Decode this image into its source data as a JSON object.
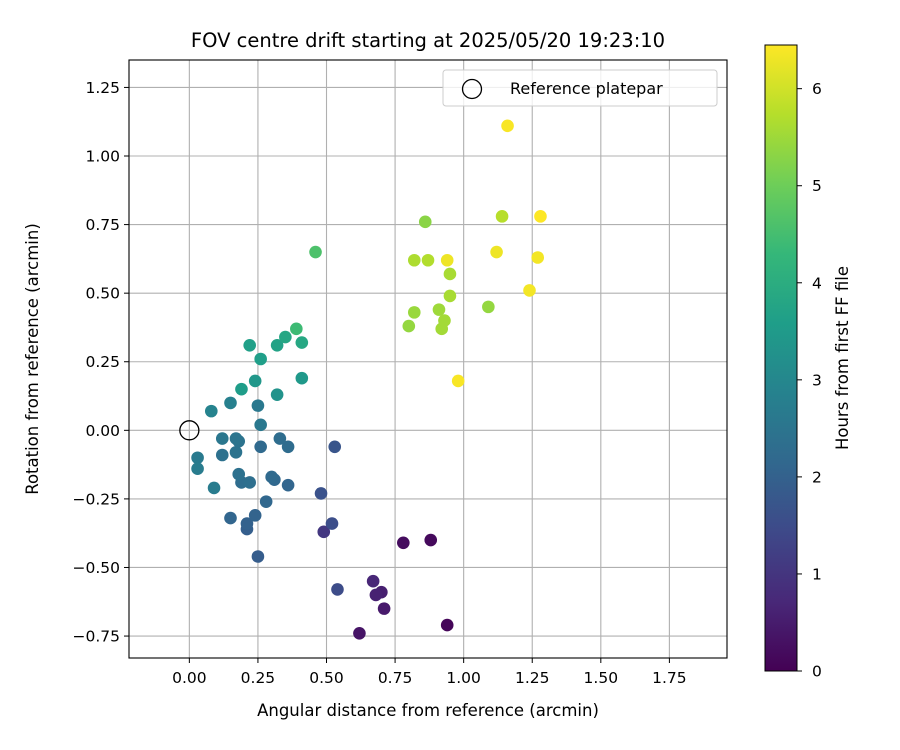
{
  "chart_data": {
    "type": "scatter",
    "title": "FOV centre drift starting at 2025/05/20 19:23:10",
    "xlabel": "Angular distance from reference (arcmin)",
    "ylabel": "Rotation from reference (arcmin)",
    "xlim": [
      -0.22,
      1.96
    ],
    "ylim": [
      -0.83,
      1.35
    ],
    "xticks": [
      0.0,
      0.25,
      0.5,
      0.75,
      1.0,
      1.25,
      1.5,
      1.75
    ],
    "xtick_labels": [
      "0.00",
      "0.25",
      "0.50",
      "0.75",
      "1.00",
      "1.25",
      "1.50",
      "1.75"
    ],
    "yticks": [
      -0.75,
      -0.5,
      -0.25,
      0.0,
      0.25,
      0.5,
      0.75,
      1.0,
      1.25
    ],
    "ytick_labels": [
      "−0.75",
      "−0.50",
      "−0.25",
      "0.00",
      "0.25",
      "0.50",
      "0.75",
      "1.00",
      "1.25"
    ],
    "grid": true,
    "legend": {
      "placement": "top-right",
      "entries": [
        "Reference platepar"
      ]
    },
    "reference_point": {
      "x": 0.0,
      "y": 0.0,
      "label": "Reference platepar"
    },
    "colorbar": {
      "label": "Hours from first FF file",
      "colormap": "viridis",
      "range": [
        0,
        6.45
      ],
      "ticks": [
        0,
        1,
        2,
        3,
        4,
        5,
        6
      ],
      "tick_labels": [
        "0",
        "1",
        "2",
        "3",
        "4",
        "5",
        "6"
      ]
    },
    "points": [
      {
        "x": 0.94,
        "y": -0.71,
        "c": 0.1
      },
      {
        "x": 0.88,
        "y": -0.4,
        "c": 0.15
      },
      {
        "x": 0.78,
        "y": -0.41,
        "c": 0.2
      },
      {
        "x": 0.62,
        "y": -0.74,
        "c": 0.35
      },
      {
        "x": 0.71,
        "y": -0.65,
        "c": 0.45
      },
      {
        "x": 0.7,
        "y": -0.59,
        "c": 0.55
      },
      {
        "x": 0.68,
        "y": -0.6,
        "c": 0.6
      },
      {
        "x": 0.67,
        "y": -0.55,
        "c": 0.7
      },
      {
        "x": 0.49,
        "y": -0.37,
        "c": 1.05
      },
      {
        "x": 0.54,
        "y": -0.58,
        "c": 1.5
      },
      {
        "x": 0.52,
        "y": -0.34,
        "c": 1.55
      },
      {
        "x": 0.48,
        "y": -0.23,
        "c": 1.65
      },
      {
        "x": 0.53,
        "y": -0.06,
        "c": 1.7
      },
      {
        "x": 0.25,
        "y": -0.46,
        "c": 1.9
      },
      {
        "x": 0.21,
        "y": -0.36,
        "c": 1.95
      },
      {
        "x": 0.21,
        "y": -0.34,
        "c": 2.0
      },
      {
        "x": 0.24,
        "y": -0.31,
        "c": 2.05
      },
      {
        "x": 0.15,
        "y": -0.32,
        "c": 2.1
      },
      {
        "x": 0.36,
        "y": -0.2,
        "c": 2.1
      },
      {
        "x": 0.31,
        "y": -0.18,
        "c": 2.15
      },
      {
        "x": 0.28,
        "y": -0.26,
        "c": 2.15
      },
      {
        "x": 0.3,
        "y": -0.17,
        "c": 2.2
      },
      {
        "x": 0.26,
        "y": -0.06,
        "c": 2.2
      },
      {
        "x": 0.36,
        "y": -0.06,
        "c": 2.25
      },
      {
        "x": 0.33,
        "y": -0.03,
        "c": 2.3
      },
      {
        "x": 0.19,
        "y": -0.19,
        "c": 2.3
      },
      {
        "x": 0.22,
        "y": -0.19,
        "c": 2.35
      },
      {
        "x": 0.18,
        "y": -0.16,
        "c": 2.4
      },
      {
        "x": 0.12,
        "y": -0.09,
        "c": 2.4
      },
      {
        "x": 0.17,
        "y": -0.08,
        "c": 2.45
      },
      {
        "x": 0.18,
        "y": -0.04,
        "c": 2.45
      },
      {
        "x": 0.17,
        "y": -0.03,
        "c": 2.5
      },
      {
        "x": 0.12,
        "y": -0.03,
        "c": 2.55
      },
      {
        "x": 0.26,
        "y": 0.02,
        "c": 2.6
      },
      {
        "x": 0.25,
        "y": 0.09,
        "c": 2.6
      },
      {
        "x": 0.03,
        "y": -0.1,
        "c": 2.65
      },
      {
        "x": 0.03,
        "y": -0.14,
        "c": 2.7
      },
      {
        "x": 0.09,
        "y": -0.21,
        "c": 2.7
      },
      {
        "x": 0.15,
        "y": 0.1,
        "c": 2.8
      },
      {
        "x": 0.08,
        "y": 0.07,
        "c": 2.9
      },
      {
        "x": 0.32,
        "y": 0.13,
        "c": 3.3
      },
      {
        "x": 0.24,
        "y": 0.18,
        "c": 3.4
      },
      {
        "x": 0.41,
        "y": 0.19,
        "c": 3.45
      },
      {
        "x": 0.19,
        "y": 0.15,
        "c": 3.55
      },
      {
        "x": 0.26,
        "y": 0.26,
        "c": 3.6
      },
      {
        "x": 0.22,
        "y": 0.31,
        "c": 3.65
      },
      {
        "x": 0.32,
        "y": 0.31,
        "c": 3.7
      },
      {
        "x": 0.35,
        "y": 0.34,
        "c": 3.8
      },
      {
        "x": 0.41,
        "y": 0.32,
        "c": 3.85
      },
      {
        "x": 0.39,
        "y": 0.37,
        "c": 4.4
      },
      {
        "x": 0.46,
        "y": 0.65,
        "c": 4.6
      },
      {
        "x": 0.86,
        "y": 0.76,
        "c": 5.3
      },
      {
        "x": 1.09,
        "y": 0.45,
        "c": 5.4
      },
      {
        "x": 0.8,
        "y": 0.38,
        "c": 5.4
      },
      {
        "x": 0.82,
        "y": 0.43,
        "c": 5.45
      },
      {
        "x": 0.91,
        "y": 0.44,
        "c": 5.5
      },
      {
        "x": 0.92,
        "y": 0.37,
        "c": 5.55
      },
      {
        "x": 0.93,
        "y": 0.4,
        "c": 5.55
      },
      {
        "x": 0.95,
        "y": 0.49,
        "c": 5.6
      },
      {
        "x": 0.95,
        "y": 0.57,
        "c": 5.6
      },
      {
        "x": 0.82,
        "y": 0.62,
        "c": 5.65
      },
      {
        "x": 0.87,
        "y": 0.62,
        "c": 5.7
      },
      {
        "x": 1.14,
        "y": 0.78,
        "c": 5.75
      },
      {
        "x": 0.94,
        "y": 0.62,
        "c": 6.3
      },
      {
        "x": 1.12,
        "y": 0.65,
        "c": 6.3
      },
      {
        "x": 1.27,
        "y": 0.63,
        "c": 6.35
      },
      {
        "x": 1.24,
        "y": 0.51,
        "c": 6.35
      },
      {
        "x": 0.98,
        "y": 0.18,
        "c": 6.4
      },
      {
        "x": 1.16,
        "y": 1.11,
        "c": 6.4
      },
      {
        "x": 1.28,
        "y": 0.78,
        "c": 6.45
      }
    ]
  }
}
